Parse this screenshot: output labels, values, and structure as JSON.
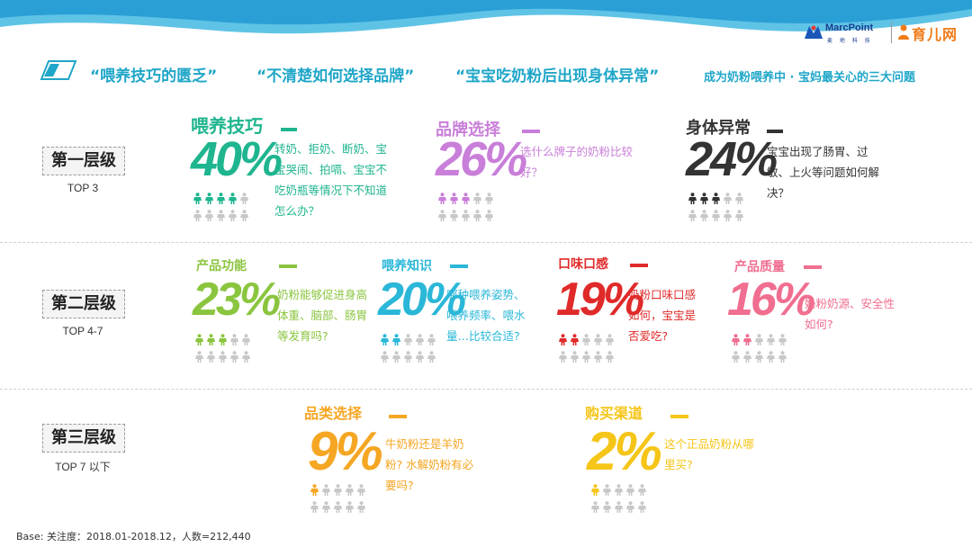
{
  "header": {
    "logo_marcpoint": "MarcPoint",
    "logo_marcpoint_sub": "麦 地 科 技",
    "logo_yuer": "育儿网",
    "headline_quote1": "“喂养技巧的匮乏”",
    "headline_quote2": "“不清楚如何选择品牌”",
    "headline_quote3": "“宝宝吃奶粉后出现身体异常”",
    "headline_tail": "成为奶粉喂养中 · 宝妈最关心的三大问题"
  },
  "tiers": [
    {
      "label": "第一层级",
      "sub": "TOP 3"
    },
    {
      "label": "第二层级",
      "sub": "TOP 4-7"
    },
    {
      "label": "第三层级",
      "sub": "TOP 7 以下"
    }
  ],
  "chart_data": {
    "type": "bar",
    "categories": [
      "喂养技巧",
      "品牌选择",
      "身体异常",
      "产品功能",
      "喂养知识",
      "口味口感",
      "产品质量",
      "品类选择",
      "购买渠道"
    ],
    "values": [
      40,
      26,
      24,
      23,
      20,
      19,
      16,
      9,
      2
    ],
    "labels": [
      "40%",
      "26%",
      "24%",
      "23%",
      "20%",
      "19%",
      "16%",
      "9%",
      "2%"
    ],
    "unit": "%",
    "people_filled": [
      4,
      3,
      3,
      3,
      2,
      2,
      2,
      1,
      1
    ],
    "people_total": 10,
    "colors": [
      "#1fb58f",
      "#c97fd9",
      "#333333",
      "#8bc53f",
      "#2ab7d8",
      "#e02a2a",
      "#f06e8f",
      "#f5a623",
      "#f5c518"
    ],
    "descriptions": [
      "转奶、拒奶、断奶、宝宝哭闹、拍嗝、宝宝不吃奶瓶等情况下不知道怎么办？",
      "选什么牌子的奶粉比较好？",
      "宝宝出现了肠胃、过敏、上火等问题如何解决？",
      "奶粉能够促进身高体重、脑部、肠胃等发育吗?",
      "哪种喂养姿势、喂养频率、喂水量…比较合适?",
      "奶粉口味口感如何，宝宝是否爱吃?",
      "奶粉奶源、安全性如何?",
      "牛奶粉还是羊奶粉? 水解奶粉有必要吗?",
      "这个正品奶粉从哪里买?"
    ],
    "tier": [
      1,
      1,
      1,
      2,
      2,
      2,
      2,
      3,
      3
    ]
  },
  "footer": {
    "base": "Base: 关注度：2018.01-2018.12，人数=212,440"
  }
}
